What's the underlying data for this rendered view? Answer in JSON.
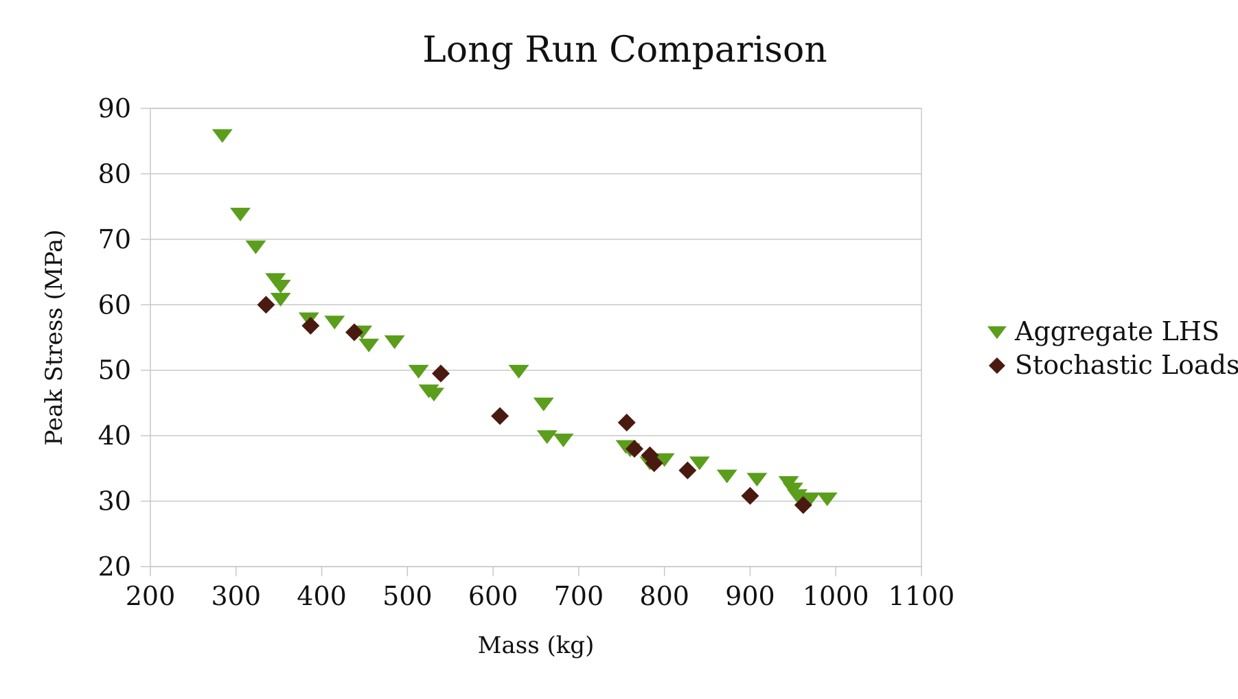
{
  "chart_data": {
    "type": "scatter",
    "title": "Long Run Comparison",
    "xlabel": "Mass (kg)",
    "ylabel": "Peak Stress (MPa)",
    "xlim": [
      200,
      1100
    ],
    "ylim": [
      20,
      90
    ],
    "x_ticks": [
      "200",
      "300",
      "400",
      "500",
      "600",
      "700",
      "800",
      "900",
      "1000",
      "1100"
    ],
    "y_ticks": [
      "20",
      "30",
      "40",
      "50",
      "60",
      "70",
      "80",
      "90"
    ],
    "grid": "horizontal",
    "legend_position": "right",
    "series": [
      {
        "name": "Aggregate LHS",
        "marker": "triangle-down",
        "color": "#5a9e1b",
        "points": [
          [
            284,
            86
          ],
          [
            305,
            74
          ],
          [
            323,
            69
          ],
          [
            346,
            64
          ],
          [
            352,
            63
          ],
          [
            352,
            61
          ],
          [
            385,
            58
          ],
          [
            415,
            57.5
          ],
          [
            447,
            56
          ],
          [
            455,
            54
          ],
          [
            485,
            54.5
          ],
          [
            513,
            50
          ],
          [
            525,
            47
          ],
          [
            531,
            46.5
          ],
          [
            630,
            50
          ],
          [
            659,
            45
          ],
          [
            663,
            40
          ],
          [
            682,
            39.5
          ],
          [
            755,
            38.5
          ],
          [
            760,
            38
          ],
          [
            783,
            36
          ],
          [
            800,
            36.5
          ],
          [
            841,
            36
          ],
          [
            873,
            34
          ],
          [
            908,
            33.5
          ],
          [
            945,
            33
          ],
          [
            950,
            32
          ],
          [
            955,
            31
          ],
          [
            958,
            30.5
          ],
          [
            970,
            30.5
          ],
          [
            990,
            30.5
          ]
        ]
      },
      {
        "name": "Stochastic Loads",
        "marker": "diamond",
        "color": "#4a1a10",
        "points": [
          [
            335,
            60
          ],
          [
            387,
            56.8
          ],
          [
            438,
            55.8
          ],
          [
            539,
            49.5
          ],
          [
            608,
            43
          ],
          [
            756,
            42
          ],
          [
            765,
            38
          ],
          [
            783,
            37
          ],
          [
            788,
            35.8
          ],
          [
            827,
            34.7
          ],
          [
            900,
            30.8
          ],
          [
            962,
            29.4
          ]
        ]
      }
    ]
  }
}
